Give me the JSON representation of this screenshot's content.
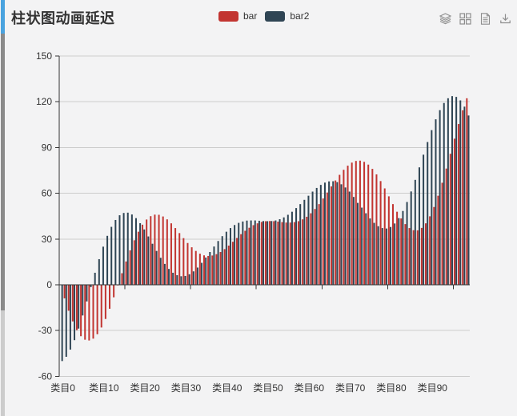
{
  "page": {
    "background_color": "#f3f3f4"
  },
  "scrollbar": {
    "thumb_color": "#4aa3df",
    "track_color": "#8a8a8a",
    "track_bottom_color": "#cccccc"
  },
  "header": {
    "title": "柱状图动画延迟"
  },
  "legend": {
    "items": [
      {
        "label": "bar",
        "color": "#c23531"
      },
      {
        "label": "bar2",
        "color": "#2f4554"
      }
    ]
  },
  "toolbox": {
    "icon_color": "#8d8d8d",
    "buttons": [
      "magic-type-stack",
      "magic-type-tiled",
      "data-view",
      "save-as-image"
    ]
  },
  "chart_data": {
    "type": "bar",
    "title": "柱状图动画延迟",
    "legend_position": "top-center",
    "grid": true,
    "ylim": [
      -60,
      150
    ],
    "y_ticks": [
      150,
      120,
      90,
      60,
      30,
      0,
      -30,
      -60
    ],
    "category_count": 100,
    "category_name_pattern": "类目{index}",
    "x_tick_labels": [
      "类目0",
      "类目10",
      "类目20",
      "类目30",
      "类目40",
      "类目50",
      "类目60",
      "类目70",
      "类目80",
      "类目90"
    ],
    "axis_color": "#333333",
    "gridline_color": "#cccccc",
    "label_color": "#333333",
    "series": [
      {
        "name": "bar",
        "color": "#c23531",
        "values": [
          0,
          -8.9,
          -17,
          -24,
          -29.7,
          -33.7,
          -36,
          -36.5,
          -35.3,
          -32.4,
          -28,
          -22.4,
          -15.7,
          -8.2,
          -0.4,
          7.6,
          15.3,
          22.6,
          29.2,
          34.8,
          39.4,
          42.8,
          45,
          46,
          45.9,
          44.8,
          42.9,
          40.3,
          37.2,
          33.9,
          30.6,
          27.4,
          24.6,
          22.2,
          20.4,
          19.3,
          18.9,
          19.2,
          20.1,
          21.5,
          23.4,
          25.7,
          28.2,
          30.7,
          33.2,
          35.4,
          37.4,
          39.1,
          40.3,
          41.2,
          41.7,
          41.8,
          41.7,
          41.4,
          41.1,
          40.8,
          40.8,
          41.1,
          41.7,
          42.9,
          44.6,
          46.9,
          49.7,
          52.9,
          56.6,
          60.5,
          64.5,
          68.4,
          72.1,
          75.4,
          78.1,
          80.1,
          81.2,
          81.4,
          80.6,
          78.8,
          76,
          72.4,
          68,
          63.2,
          58,
          52.9,
          47.9,
          43.5,
          39.8,
          37.2,
          35.8,
          35.7,
          37.3,
          40.3,
          44.9,
          51,
          58.4,
          66.9,
          76.2,
          85.9,
          95.8,
          105.4,
          114.4,
          122.3
        ]
      },
      {
        "name": "bar2",
        "color": "#2f4554",
        "values": [
          -50,
          -47.2,
          -42.5,
          -36.3,
          -28.7,
          -20.1,
          -10.9,
          -1.5,
          7.9,
          16.8,
          25,
          32.1,
          38,
          42.5,
          45.6,
          47.1,
          47.3,
          46.1,
          43.7,
          40.4,
          36.3,
          31.7,
          26.9,
          22.2,
          17.7,
          13.7,
          10.4,
          7.9,
          6.3,
          5.6,
          5.8,
          6.9,
          8.8,
          11.3,
          14.4,
          17.9,
          21.5,
          25.1,
          28.7,
          31.9,
          34.8,
          37.2,
          39.2,
          40.6,
          41.5,
          42.1,
          42.2,
          42.2,
          42,
          41.8,
          41.7,
          41.8,
          42.2,
          43,
          44.2,
          45.9,
          47.9,
          50.3,
          52.9,
          55.7,
          58.4,
          61.1,
          63.5,
          65.5,
          67,
          67.8,
          67.9,
          67.3,
          65.9,
          63.8,
          61.1,
          57.6,
          53.7,
          50.6,
          46.9,
          43.5,
          40.6,
          38.4,
          37.2,
          36.9,
          37.9,
          40.2,
          43.7,
          48.4,
          54.3,
          61.2,
          68.8,
          77,
          85.3,
          93.6,
          101.4,
          108.5,
          114.5,
          119.2,
          122.3,
          123.7,
          123.2,
          120.9,
          116.8,
          111
        ]
      }
    ]
  }
}
